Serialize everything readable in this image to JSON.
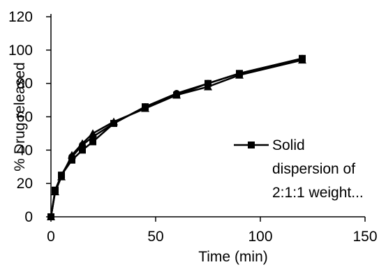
{
  "chart_data": {
    "type": "line",
    "title": "",
    "xlabel": "Time (min)",
    "ylabel": "% Drug released",
    "xlim": [
      0,
      150
    ],
    "ylim": [
      0,
      120
    ],
    "x_ticks": [
      "0",
      "50",
      "100",
      "150"
    ],
    "y_ticks": [
      "0",
      "20",
      "40",
      "60",
      "80",
      "100",
      "120"
    ],
    "x_tick_values": [
      0,
      50,
      100,
      150
    ],
    "y_tick_values": [
      0,
      20,
      40,
      60,
      80,
      100,
      120
    ],
    "grid": false,
    "legend_position": "right",
    "legend_lines": [
      "Solid",
      "dispersion of",
      "2:1:1 weight..."
    ],
    "series": [
      {
        "name": "Solid dispersion of 2:1:1 weight...",
        "marker": "square",
        "color": "#000000",
        "x": [
          0,
          2,
          5,
          10,
          15,
          20,
          30,
          45,
          60,
          75,
          90,
          120
        ],
        "y": [
          0,
          16,
          25,
          34,
          40,
          45,
          56,
          66,
          73,
          80,
          86,
          95
        ]
      },
      {
        "name": "",
        "marker": "triangle",
        "color": "#000000",
        "x": [
          0,
          2,
          5,
          10,
          15,
          20,
          30,
          45,
          60,
          75,
          90,
          120
        ],
        "y": [
          0,
          15,
          24,
          37,
          44,
          50,
          57,
          65,
          73,
          78,
          85,
          94
        ]
      },
      {
        "name": "",
        "marker": "circle",
        "color": "#000000",
        "x": [
          0,
          2,
          5,
          10,
          15,
          20,
          30,
          45,
          60,
          75,
          90,
          120
        ],
        "y": [
          0,
          15,
          25,
          36,
          43,
          48,
          56,
          66,
          74,
          80,
          86,
          95
        ]
      }
    ]
  }
}
